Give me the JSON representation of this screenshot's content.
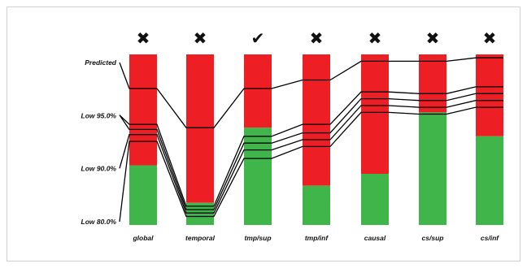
{
  "chart_data": {
    "type": "bar",
    "categories": [
      "global",
      "temporal",
      "tmp/sup",
      "tmp/inf",
      "causal",
      "cs/sup",
      "cs/inf"
    ],
    "marks": [
      "✖",
      "✖",
      "✔",
      "✖",
      "✖",
      "✖",
      "✖"
    ],
    "stack_bottom_label": "",
    "stack_top_label": "",
    "side_labels": [
      {
        "text": "",
        "color": "#e06a3a",
        "level": 0.355
      },
      {
        "text": "",
        "color": "#4caf4a",
        "level": 0.85
      }
    ],
    "green_fraction": [
      0.35,
      0.13,
      0.57,
      0.23,
      0.3,
      0.66,
      0.52
    ],
    "line_labels": [
      "Predicted",
      "Low 95.0%",
      "Low 90.0%",
      "Low 80.0%"
    ],
    "lines": [
      {
        "name": "Predicted",
        "left_anchor": 0.0,
        "values": [
          0.8,
          0.57,
          0.8,
          0.85,
          0.96,
          0.96,
          0.98
        ]
      },
      {
        "name": "Low 95.0%",
        "left_anchor": 0.33,
        "values": [
          0.59,
          0.11,
          0.52,
          0.59,
          0.78,
          0.77,
          0.81
        ]
      },
      {
        "name": "",
        "left_anchor": 0.33,
        "values": [
          0.56,
          0.09,
          0.48,
          0.54,
          0.74,
          0.73,
          0.77
        ]
      },
      {
        "name": "Low 90.0%",
        "left_anchor": 0.665,
        "values": [
          0.53,
          0.07,
          0.44,
          0.5,
          0.7,
          0.69,
          0.73
        ]
      },
      {
        "name": "Low 80.0%",
        "left_anchor": 1.0,
        "values": [
          0.49,
          0.05,
          0.39,
          0.46,
          0.66,
          0.65,
          0.69
        ]
      }
    ],
    "colors": {
      "red": "#ee1f24",
      "green": "#3fb54a",
      "line": "#000000"
    }
  }
}
